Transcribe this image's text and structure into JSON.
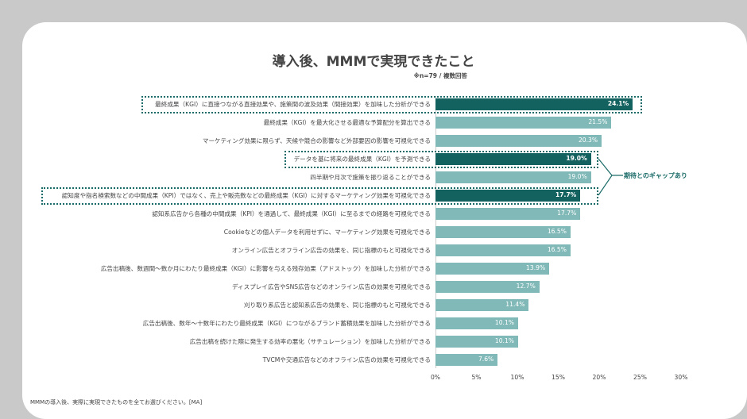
{
  "chart_data": {
    "type": "bar",
    "orientation": "horizontal",
    "title": "導入後、MMMで実現できたこと",
    "subtitle": "※n=79 / 複数回答",
    "categories": [
      "最終成果（KGI）に直接つながる直接効果や、施策間の波及効果（間接効果）を加味した分析ができる",
      "最終成果（KGI）を最大化させる最適な予算配分を算出できる",
      "マーケティング効果に限らず、天候や競合の影響など外部要因の影響を可視化できる",
      "データを基に将来の最終成果（KGI）を予測できる",
      "四半期や月次で施策を振り返ることができる",
      "認知度や指名検索数などの中間成果（KPI）ではなく、売上や販売数などの最終成果（KGI）に対するマーケティング効果を可視化できる",
      "認知系広告から各種の中間成果（KPI）を通過して、最終成果（KGI）に至るまでの経路を可視化できる",
      "Cookieなどの個人データを利用せずに、マーケティング効果を可視化できる",
      "オンライン広告とオフライン広告の効果を、同じ指標のもと可視化できる",
      "広告出稿後、数週間〜数か月にわたり最終成果（KGI）に影響を与える残存効果（アドストック）を加味した分析ができる",
      "ディスプレイ広告やSNS広告などのオンライン広告の効果を可視化できる",
      "刈り取り系広告と認知系広告の効果を、同じ指標のもと可視化できる",
      "広告出稿後、数年〜十数年にわたり最終成果（KGI）につながるブランド蓄積効果を加味した分析ができる",
      "広告出稿を続けた際に発生する効率の悪化（サチュレーション）を加味した分析ができる",
      "TVCMや交通広告などのオフライン広告の効果を可視化できる"
    ],
    "values": [
      24.1,
      21.5,
      20.3,
      19.0,
      19.0,
      17.7,
      17.7,
      16.5,
      16.5,
      13.9,
      12.7,
      11.4,
      10.1,
      10.1,
      7.6
    ],
    "data_labels": [
      "24.1%",
      "21.5%",
      "20.3%",
      "19.0%",
      "19.0%",
      "17.7%",
      "17.7%",
      "16.5%",
      "16.5%",
      "13.9%",
      "12.7%",
      "11.4%",
      "10.1%",
      "10.1%",
      "7.6%"
    ],
    "highlighted": [
      0,
      3,
      5
    ],
    "xlim": [
      0,
      30
    ],
    "xticks": [
      "0%",
      "5%",
      "10%",
      "15%",
      "20%",
      "25%",
      "30%"
    ],
    "annotation": "期待とのギャップあり",
    "colors": {
      "highlight": "#14625f",
      "normal": "#80b9b7"
    },
    "grid": false
  },
  "footer": "MMMの導入後、実際に実現できたものを全てお選びください。[MA]"
}
